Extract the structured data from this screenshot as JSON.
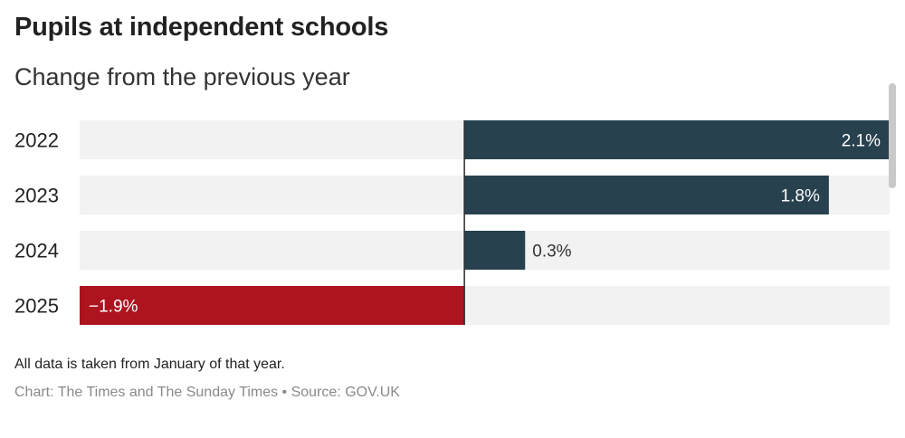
{
  "header": {
    "title": "Pupils at independent schools",
    "subtitle": "Change from the previous year"
  },
  "footer": {
    "note": "All data is taken from January of that year.",
    "source": "Chart: The Times and The Sunday Times • Source: GOV.UK"
  },
  "colors": {
    "positive": "#27414f",
    "negative": "#ad1420",
    "track": "#f2f2f2",
    "axis": "#2b2b2b"
  },
  "chart_data": {
    "type": "bar",
    "orientation": "horizontal",
    "title": "Pupils at independent schools",
    "subtitle": "Change from the previous year",
    "categories": [
      "2022",
      "2023",
      "2024",
      "2025"
    ],
    "values": [
      2.1,
      1.8,
      0.3,
      -1.9
    ],
    "data_labels": [
      "2.1%",
      "1.8%",
      "0.3%",
      "−1.9%"
    ],
    "xlim": [
      -1.9,
      2.1
    ],
    "grid": false,
    "legend": "none"
  }
}
